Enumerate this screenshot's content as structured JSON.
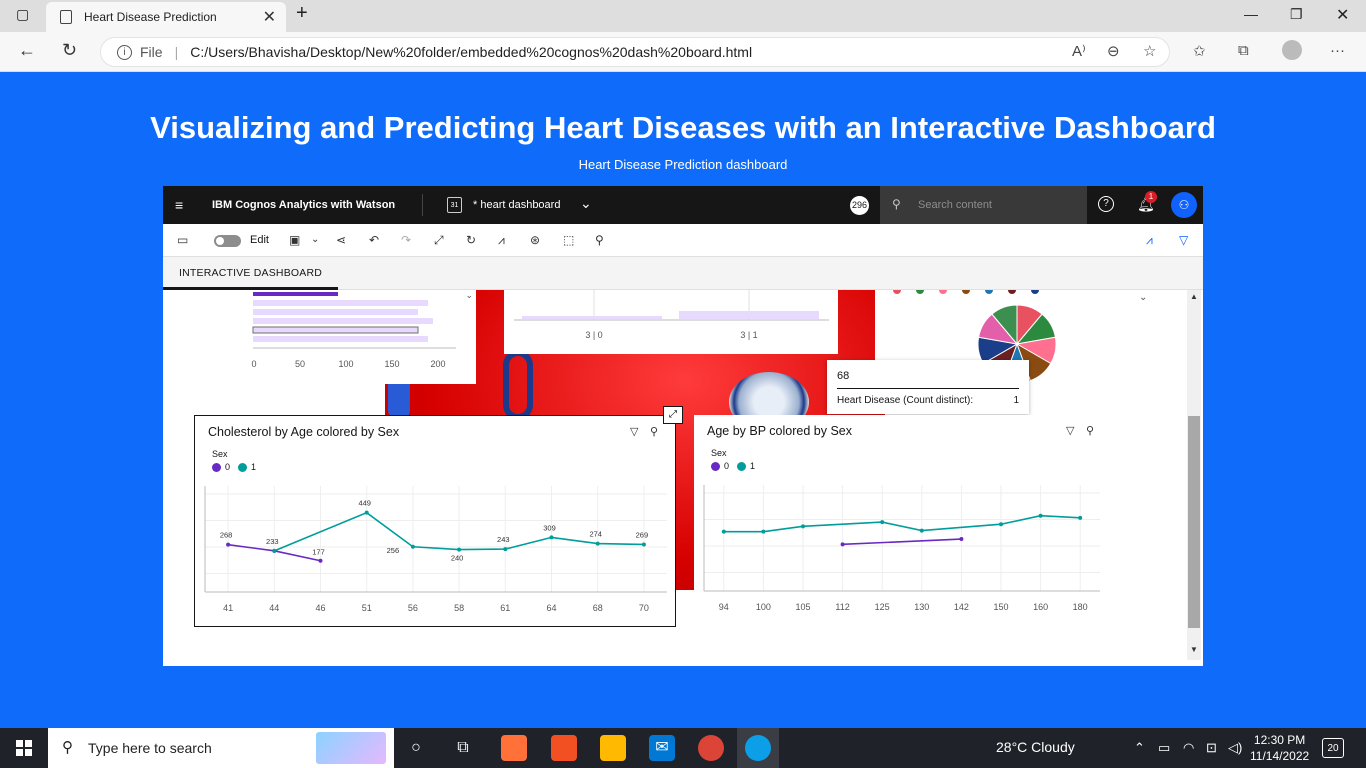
{
  "browser": {
    "tab_title": "Heart Disease Prediction",
    "tab_close": "✕",
    "new_tab": "+",
    "file_label": "File",
    "url": "C:/Users/Bhavisha/Desktop/New%20folder/embedded%20cognos%20dash%20board.html"
  },
  "page": {
    "title": "Visualizing and Predicting Heart Diseases with an Interactive Dashboard",
    "subtitle": "Heart Disease Prediction dashboard"
  },
  "cognos": {
    "brand": "IBM Cognos Analytics with Watson",
    "dashboard_name": "* heart dashboard",
    "count_badge": "296",
    "search_placeholder": "Search content",
    "notification_count": "1",
    "edit_label": "Edit",
    "tab_label": "INTERACTIVE DASHBOARD"
  },
  "top_left_panel": {
    "ticks": [
      "0",
      "50",
      "100",
      "150",
      "200"
    ]
  },
  "top_mid_panel": {
    "ticks": [
      "3 | 0",
      "3 | 1"
    ]
  },
  "tooltip": {
    "value": "68",
    "label": "Heart Disease (Count distinct):",
    "count": "1"
  },
  "pie": {
    "colors": [
      "#e8515f",
      "#2b8a3e",
      "#ff6f8f",
      "#8a4b12",
      "#1f78b4",
      "#6b1f1f",
      "#1a3e8a",
      "#e35fa9",
      "#3d8f4f"
    ]
  },
  "chart1": {
    "title": "Cholesterol by Age colored by Sex",
    "legend_title": "Sex",
    "legend": [
      "0",
      "1"
    ],
    "colors": {
      "s0": "#6929c4",
      "s1": "#009d9a"
    }
  },
  "chart2": {
    "title": "Age by BP colored by Sex",
    "legend_title": "Sex",
    "legend": [
      "0",
      "1"
    ],
    "colors": {
      "s0": "#6929c4",
      "s1": "#009d9a"
    }
  },
  "chart_data": [
    {
      "type": "line",
      "title": "Cholesterol by Age colored by Sex",
      "x": [
        41,
        44,
        46,
        51,
        56,
        58,
        61,
        64,
        68,
        70
      ],
      "categories": [
        "41",
        "44",
        "46",
        "51",
        "56",
        "58",
        "61",
        "64",
        "68",
        "70"
      ],
      "series": [
        {
          "name": "0",
          "values": [
            268,
            233,
            177,
            null,
            null,
            null,
            null,
            null,
            null,
            null
          ]
        },
        {
          "name": "1",
          "values": [
            null,
            233,
            null,
            449,
            256,
            240,
            243,
            309,
            274,
            269
          ]
        }
      ],
      "labels": [
        {
          "category": "41",
          "text": "268"
        },
        {
          "category": "44",
          "text": "233"
        },
        {
          "category": "46",
          "text": "177"
        },
        {
          "category": "51",
          "text": "449"
        },
        {
          "category": "56",
          "text": "256"
        },
        {
          "category": "58",
          "text": "240"
        },
        {
          "category": "61",
          "text": "243"
        },
        {
          "category": "64",
          "text": "309"
        },
        {
          "category": "68",
          "text": "274"
        },
        {
          "category": "70",
          "text": "269"
        }
      ],
      "ylim": [
        0,
        600
      ],
      "legend": "top-left"
    },
    {
      "type": "line",
      "title": "Age by BP colored by Sex",
      "categories": [
        "94",
        "100",
        "105",
        "112",
        "125",
        "130",
        "142",
        "150",
        "160",
        "180"
      ],
      "series": [
        {
          "name": "0",
          "values": [
            null,
            null,
            null,
            44,
            null,
            null,
            49,
            null,
            null,
            null
          ]
        },
        {
          "name": "1",
          "values": [
            56,
            56,
            61,
            null,
            65,
            57,
            null,
            63,
            71,
            69
          ]
        }
      ],
      "ylim": [
        0,
        100
      ],
      "legend": "top-left"
    }
  ],
  "taskbar": {
    "search_text": "Type here to search",
    "weather": "28°C  Cloudy",
    "time": "12:30 PM",
    "date": "11/14/2022",
    "notifications": "20"
  }
}
